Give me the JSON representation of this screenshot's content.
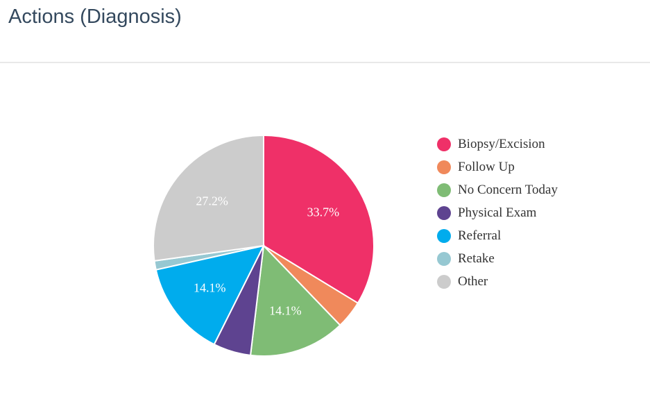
{
  "header": {
    "title": "Actions (Diagnosis)"
  },
  "chart_data": {
    "type": "pie",
    "title": "",
    "legend_position": "right",
    "slices": [
      {
        "label": "Biopsy/Excision",
        "value": 33.7,
        "color": "#ef3068",
        "data_label": "33.7%"
      },
      {
        "label": "Follow Up",
        "value": 4.1,
        "color": "#f0895b",
        "data_label": ""
      },
      {
        "label": "No Concern Today",
        "value": 14.1,
        "color": "#7fbc75",
        "data_label": "14.1%"
      },
      {
        "label": "Physical Exam",
        "value": 5.5,
        "color": "#5e4390",
        "data_label": ""
      },
      {
        "label": "Referral",
        "value": 14.1,
        "color": "#00aced",
        "data_label": "14.1%"
      },
      {
        "label": "Retake",
        "value": 1.3,
        "color": "#96c8d2",
        "data_label": ""
      },
      {
        "label": "Other",
        "value": 27.2,
        "color": "#cccccc",
        "data_label": "27.2%"
      }
    ]
  }
}
